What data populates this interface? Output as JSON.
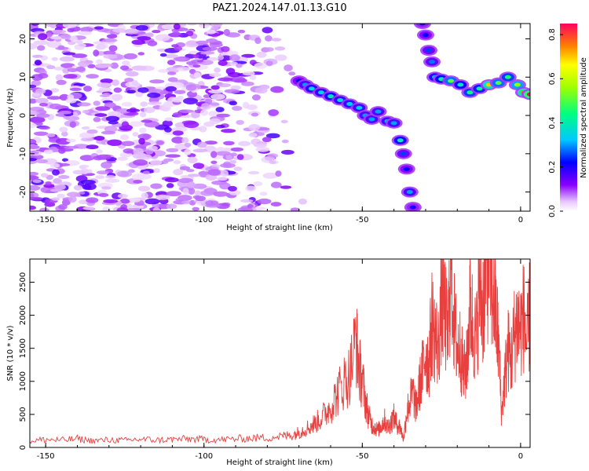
{
  "title": "PAZ1.2024.147.01.13.G10",
  "chart_data": [
    {
      "type": "heatmap",
      "xlabel": "Height of straight line (km)",
      "ylabel": "Frequency (Hz)",
      "xlim": [
        -155,
        3
      ],
      "ylim": [
        -25,
        24
      ],
      "xticks": [
        -150,
        -100,
        -50,
        0
      ],
      "yticks": [
        -20,
        -10,
        0,
        10,
        20
      ],
      "colorbar": {
        "label": "Normalized spectral amplitude",
        "range": [
          0,
          0.85
        ],
        "ticks": [
          0.0,
          0.2,
          0.4,
          0.6,
          0.8
        ],
        "colormap": [
          "#ffffff",
          "#8a00ff",
          "#0000ff",
          "#00c8ff",
          "#00ff80",
          "#ffff00",
          "#ff8000",
          "#ff0040"
        ]
      },
      "noise_region": {
        "x": [
          -155,
          -68
        ],
        "y": [
          -25,
          24
        ],
        "level": 0.12
      },
      "ridge": [
        {
          "x": -70,
          "y": 9.0,
          "z": 0.22
        },
        {
          "x": -68,
          "y": 8.0,
          "z": 0.3
        },
        {
          "x": -66,
          "y": 7.0,
          "z": 0.35
        },
        {
          "x": -63,
          "y": 6.0,
          "z": 0.35
        },
        {
          "x": -60,
          "y": 5.0,
          "z": 0.38
        },
        {
          "x": -57,
          "y": 4.0,
          "z": 0.35
        },
        {
          "x": -54,
          "y": 3.0,
          "z": 0.33
        },
        {
          "x": -51,
          "y": 2.0,
          "z": 0.32
        },
        {
          "x": -49,
          "y": 0.0,
          "z": 0.3
        },
        {
          "x": -47,
          "y": -1.0,
          "z": 0.3
        },
        {
          "x": -45,
          "y": 1.0,
          "z": 0.3
        },
        {
          "x": -42,
          "y": -1.5,
          "z": 0.32
        },
        {
          "x": -40,
          "y": -2.0,
          "z": 0.3
        },
        {
          "x": -38,
          "y": -6.5,
          "z": 0.38
        },
        {
          "x": -37,
          "y": -10.0,
          "z": 0.25
        },
        {
          "x": -36,
          "y": -14.0,
          "z": 0.22
        },
        {
          "x": -35,
          "y": -20.0,
          "z": 0.3
        },
        {
          "x": -34,
          "y": -24.0,
          "z": 0.2
        },
        {
          "x": -31,
          "y": 24.0,
          "z": 0.2
        },
        {
          "x": -30,
          "y": 21.0,
          "z": 0.22
        },
        {
          "x": -29,
          "y": 17.0,
          "z": 0.25
        },
        {
          "x": -28,
          "y": 14.0,
          "z": 0.28
        },
        {
          "x": -27,
          "y": 10.0,
          "z": 0.35
        },
        {
          "x": -25,
          "y": 9.5,
          "z": 0.4
        },
        {
          "x": -22,
          "y": 9.0,
          "z": 0.5
        },
        {
          "x": -19,
          "y": 8.0,
          "z": 0.38
        },
        {
          "x": -16,
          "y": 6.0,
          "z": 0.45
        },
        {
          "x": -13,
          "y": 7.0,
          "z": 0.42
        },
        {
          "x": -10,
          "y": 8.0,
          "z": 0.7
        },
        {
          "x": -7,
          "y": 8.5,
          "z": 0.5
        },
        {
          "x": -4,
          "y": 10.0,
          "z": 0.45
        },
        {
          "x": -1,
          "y": 8.0,
          "z": 0.55
        },
        {
          "x": 1,
          "y": 6.0,
          "z": 0.75
        },
        {
          "x": 3,
          "y": 5.5,
          "z": 0.85
        }
      ]
    },
    {
      "type": "line",
      "xlabel": "Height of straight line (km)",
      "ylabel": "SNR (10 * v/v)",
      "xlim": [
        -155,
        3
      ],
      "ylim": [
        0,
        2850
      ],
      "xticks": [
        -150,
        -100,
        -50,
        0
      ],
      "yticks": [
        0,
        500,
        1000,
        1500,
        2000,
        2500
      ],
      "series": [
        {
          "color": "#e8403f",
          "x": [
            -155,
            -150,
            -145,
            -140,
            -135,
            -130,
            -125,
            -120,
            -115,
            -110,
            -105,
            -100,
            -95,
            -90,
            -85,
            -80,
            -75,
            -72,
            -70,
            -68,
            -66,
            -64,
            -62,
            -60,
            -58,
            -56,
            -54,
            -52,
            -51,
            -50,
            -49,
            -48,
            -47,
            -46,
            -45,
            -44,
            -43,
            -42,
            -41,
            -40,
            -39,
            -38,
            -37,
            -36,
            -35,
            -34,
            -33,
            -32,
            -31,
            -30,
            -29,
            -28,
            -27,
            -26,
            -25,
            -24,
            -23,
            -22,
            -21,
            -20,
            -19,
            -18,
            -17,
            -16,
            -15,
            -14,
            -13,
            -12,
            -11,
            -10,
            -9,
            -8,
            -7,
            -6,
            -5,
            -4,
            -3,
            -2,
            -1,
            0,
            1,
            2,
            3
          ],
          "y": [
            100,
            120,
            110,
            130,
            100,
            115,
            105,
            125,
            110,
            120,
            130,
            120,
            115,
            130,
            140,
            150,
            170,
            190,
            230,
            280,
            330,
            400,
            500,
            620,
            800,
            980,
            1100,
            1640,
            1200,
            1020,
            700,
            480,
            350,
            300,
            260,
            330,
            420,
            300,
            380,
            460,
            350,
            300,
            120,
            520,
            700,
            820,
            600,
            900,
            1150,
            1450,
            1250,
            1900,
            1700,
            1500,
            2200,
            2100,
            1650,
            2800,
            1900,
            1500,
            1500,
            1100,
            1250,
            2200,
            1800,
            1600,
            2500,
            2100,
            2650,
            2850,
            2400,
            2100,
            1600,
            500,
            1050,
            1500,
            1300,
            1700,
            1900,
            1800,
            2000,
            1500,
            2100
          ]
        }
      ]
    }
  ]
}
